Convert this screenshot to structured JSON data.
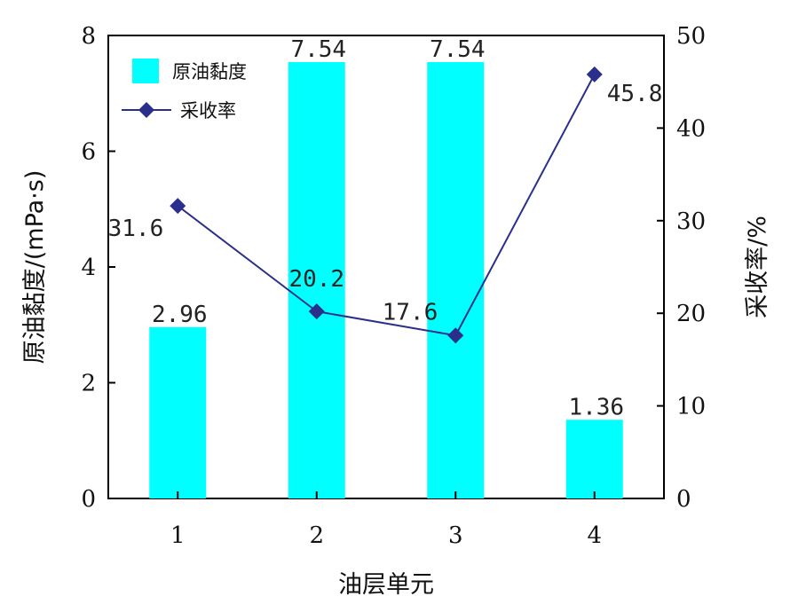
{
  "chart_data": {
    "type": "bar",
    "categories": [
      "1",
      "2",
      "3",
      "4"
    ],
    "xlabel": "油层单元",
    "ylabel": "原油黏度/(mPa·s)",
    "y2label": "采收率/%",
    "ylim": [
      0,
      8
    ],
    "y2lim": [
      0,
      50
    ],
    "yticks": [
      "0",
      "2",
      "4",
      "6",
      "8"
    ],
    "y2ticks": [
      "0",
      "10",
      "20",
      "30",
      "40",
      "50"
    ],
    "grid": false,
    "legend_position": "top-left",
    "series": [
      {
        "name": "原油黏度",
        "type": "bar",
        "axis": "left",
        "color": "#00FFFF",
        "values": [
          2.96,
          7.54,
          7.54,
          1.36
        ],
        "labels": [
          "2.96",
          "7.54",
          "7.54",
          "1.36"
        ]
      },
      {
        "name": "采收率",
        "type": "line",
        "marker": "diamond",
        "axis": "right",
        "color": "#2B2F8C",
        "values": [
          31.6,
          20.2,
          17.6,
          45.8
        ],
        "labels": [
          "31.6",
          "20.2",
          "17.6",
          "45.8"
        ]
      }
    ]
  }
}
